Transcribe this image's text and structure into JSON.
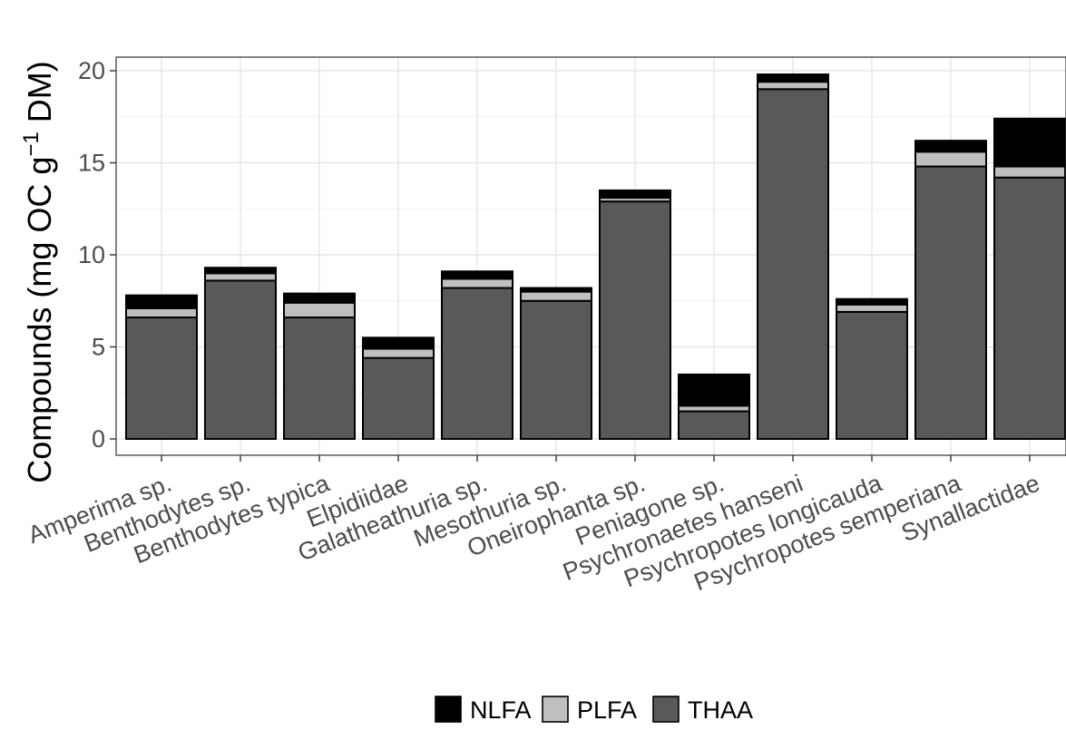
{
  "chart_data": {
    "type": "bar",
    "stacked": true,
    "title": "",
    "xlabel": "",
    "ylabel_prefix": "Compounds (mg OC g",
    "ylabel_superscript": "−1",
    "ylabel_suffix": " DM)",
    "ylim": [
      0,
      20.7
    ],
    "yticks": [
      0,
      5,
      10,
      15,
      20
    ],
    "grid": true,
    "legend_position": "bottom",
    "categories": [
      "Amperima sp.",
      "Benthodytes sp.",
      "Benthodytes typica",
      "Elpidiidae",
      "Galatheathuria sp.",
      "Mesothuria sp.",
      "Oneirophanta sp.",
      "Peniagone sp.",
      "Psychronaetes hanseni",
      "Psychropotes longicauda",
      "Psychropotes semperiana",
      "Synallactidae"
    ],
    "series": [
      {
        "name": "THAA",
        "color": "#595959",
        "values": [
          6.6,
          8.6,
          6.6,
          4.4,
          8.2,
          7.5,
          12.9,
          1.5,
          19.0,
          6.9,
          14.8,
          14.2
        ]
      },
      {
        "name": "PLFA",
        "color": "#bfbfbf",
        "values": [
          0.5,
          0.4,
          0.8,
          0.5,
          0.5,
          0.5,
          0.2,
          0.3,
          0.4,
          0.4,
          0.8,
          0.6
        ]
      },
      {
        "name": "NLFA",
        "color": "#000000",
        "values": [
          0.7,
          0.3,
          0.5,
          0.6,
          0.4,
          0.2,
          0.4,
          1.7,
          0.4,
          0.3,
          0.6,
          2.6
        ]
      }
    ],
    "legend_order": [
      "NLFA",
      "PLFA",
      "THAA"
    ]
  }
}
